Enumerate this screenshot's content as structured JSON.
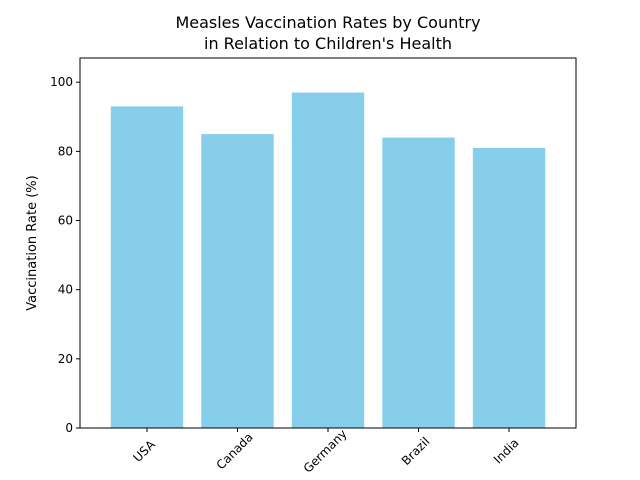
{
  "chart_data": {
    "type": "bar",
    "title_lines": [
      "Measles Vaccination Rates by Country",
      "in Relation to Children's Health"
    ],
    "xlabel": "",
    "ylabel": "Vaccination Rate (%)",
    "categories": [
      "USA",
      "Canada",
      "Germany",
      "Brazil",
      "India"
    ],
    "values": [
      93,
      85,
      97,
      84,
      81
    ],
    "ylim": [
      0,
      107
    ],
    "yticks": [
      0,
      20,
      40,
      60,
      80,
      100
    ],
    "grid": false,
    "bar_color": "#87CEEB",
    "x_tick_rotation_deg": 45
  }
}
